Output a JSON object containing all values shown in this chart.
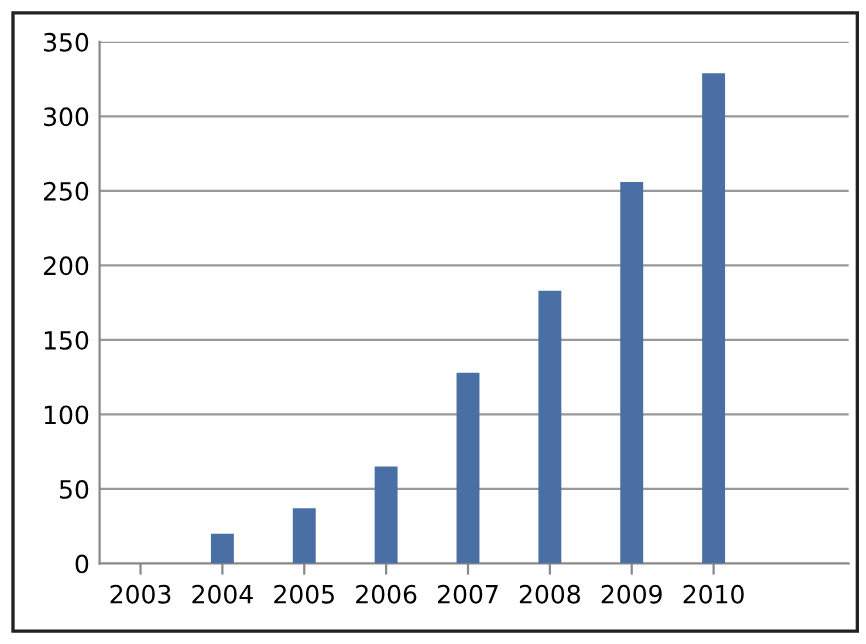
{
  "chart_data": {
    "type": "bar",
    "categories": [
      "2003",
      "2004",
      "2005",
      "2006",
      "2007",
      "2008",
      "2009",
      "2010"
    ],
    "values": [
      null,
      20,
      37,
      65,
      128,
      183,
      256,
      329
    ],
    "color": "#4a6fa5",
    "ylim": [
      0,
      350
    ],
    "yticks": [
      0,
      50,
      100,
      150,
      200,
      250,
      300,
      350
    ],
    "grid": "y"
  }
}
